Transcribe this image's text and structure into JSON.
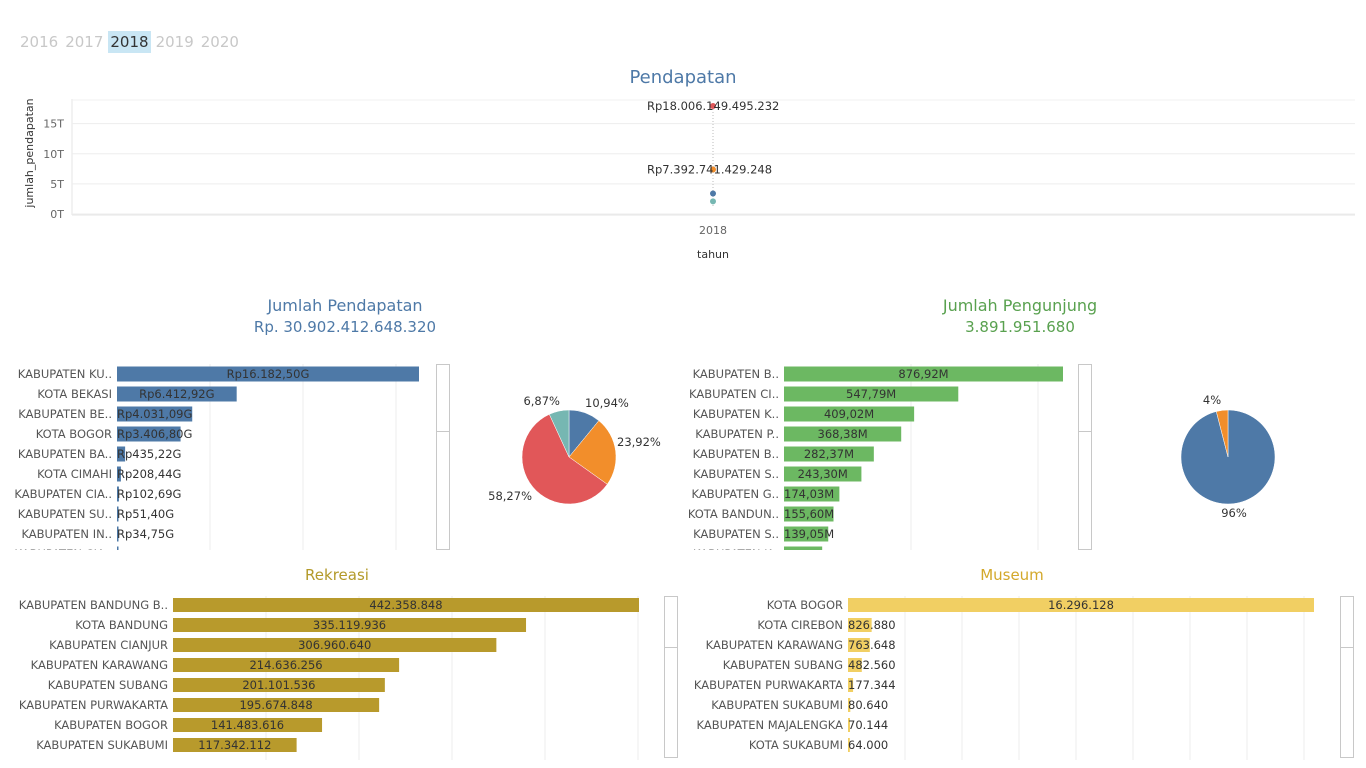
{
  "filter": {
    "years": [
      "2016",
      "2017",
      "2018",
      "2019",
      "2020"
    ],
    "selected": "2018"
  },
  "colors": {
    "blue": "#4e79a7",
    "orange": "#f28e2b",
    "red": "#e15759",
    "teal": "#76b7b2",
    "green": "#6cb862",
    "gold": "#b89a2c",
    "yellow": "#f1cf63"
  },
  "pendapatan": {
    "title": "Pendapatan",
    "ylabel": "jumlah_pendapatan",
    "xlabel": "tahun",
    "x_tick": "2018",
    "y_ticks": [
      "0T",
      "5T",
      "10T",
      "15T"
    ],
    "labels": [
      "Rp18.006.149.495.232",
      "Rp7.392.741.429.248"
    ]
  },
  "jumlah_pendapatan": {
    "title": "Jumlah Pendapatan",
    "value": "Rp. 30.902.412.648.320"
  },
  "jumlah_pengunjung": {
    "title": "Jumlah Pengunjung",
    "value": "3.891.951.680"
  },
  "chart_data": [
    {
      "id": "pendapatan_scatter",
      "type": "scatter",
      "title": "Pendapatan",
      "xlabel": "tahun",
      "ylabel": "jumlah_pendapatan",
      "x": [
        "2018"
      ],
      "points": [
        {
          "x": "2018",
          "y": 18006149495232,
          "label": "Rp18.006.149.495.232",
          "color": "#e15759"
        },
        {
          "x": "2018",
          "y": 7392741429248,
          "label": "Rp7.392.741.429.248",
          "color": "#f28e2b"
        },
        {
          "x": "2018",
          "y": 3400000000000,
          "color": "#4e79a7"
        },
        {
          "x": "2018",
          "y": 2100000000000,
          "color": "#76b7b2"
        }
      ],
      "ylim": [
        0,
        18000000000000
      ],
      "y_ticks": [
        "0T",
        "5T",
        "10T",
        "15T"
      ]
    },
    {
      "id": "pendapatan_bar",
      "type": "bar",
      "orientation": "horizontal",
      "categories": [
        "KABUPATEN KU..",
        "KOTA BEKASI",
        "KABUPATEN BE..",
        "KOTA BOGOR",
        "KABUPATEN BA..",
        "KOTA CIMAHI",
        "KABUPATEN CIA..",
        "KABUPATEN SU..",
        "KABUPATEN IN..",
        "KABUPATEN CIA.."
      ],
      "values": [
        16182.5,
        6412.92,
        4031.09,
        3406.8,
        435.22,
        208.44,
        102.69,
        51.4,
        34.75,
        20.0
      ],
      "value_labels": [
        "Rp16.182,50G",
        "Rp6.412,92G",
        "Rp4.031,09G",
        "Rp3.406,80G",
        "Rp435,22G",
        "Rp208,44G",
        "Rp102,69G",
        "Rp51,40G",
        "Rp34,75G",
        ""
      ],
      "xlim": [
        0,
        17000
      ],
      "color": "#4e79a7"
    },
    {
      "id": "pendapatan_pie",
      "type": "pie",
      "slices": [
        {
          "label": "10,94%",
          "value": 10.94,
          "color": "#4e79a7"
        },
        {
          "label": "23,92%",
          "value": 23.92,
          "color": "#f28e2b"
        },
        {
          "label": "58,27%",
          "value": 58.27,
          "color": "#e15759"
        },
        {
          "label": "6,87%",
          "value": 6.87,
          "color": "#76b7b2"
        }
      ]
    },
    {
      "id": "pengunjung_bar",
      "type": "bar",
      "orientation": "horizontal",
      "categories": [
        "KABUPATEN B..",
        "KABUPATEN CI..",
        "KABUPATEN K..",
        "KABUPATEN P..",
        "KABUPATEN B..",
        "KABUPATEN S..",
        "KABUPATEN G..",
        "KOTA BANDUN..",
        "KABUPATEN S..",
        "KABUPATEN K.."
      ],
      "values": [
        876.92,
        547.79,
        409.02,
        368.38,
        282.37,
        243.3,
        174.03,
        155.6,
        139.05,
        120.0
      ],
      "value_labels": [
        "876,92M",
        "547,79M",
        "409,02M",
        "368,38M",
        "282,37M",
        "243,30M",
        "174,03M",
        "155,60M",
        "139,05M",
        ""
      ],
      "xlim": [
        0,
        880
      ],
      "color": "#6cb862"
    },
    {
      "id": "pengunjung_pie",
      "type": "pie",
      "slices": [
        {
          "label": "96%",
          "value": 96,
          "color": "#4e79a7"
        },
        {
          "label": "4%",
          "value": 4,
          "color": "#f28e2b"
        }
      ]
    },
    {
      "id": "rekreasi_bar",
      "type": "bar",
      "orientation": "horizontal",
      "title": "Rekreasi",
      "categories": [
        "KABUPATEN BANDUNG B..",
        "KOTA BANDUNG",
        "KABUPATEN CIANJUR",
        "KABUPATEN KARAWANG",
        "KABUPATEN SUBANG",
        "KABUPATEN PURWAKARTA",
        "KABUPATEN BOGOR",
        "KABUPATEN SUKABUMI"
      ],
      "values": [
        442358848,
        335119936,
        306960640,
        214636256,
        201101536,
        195674848,
        141483616,
        117342112
      ],
      "value_labels": [
        "442.358.848",
        "335.119.936",
        "306.960.640",
        "214.636.256",
        "201.101.536",
        "195.674.848",
        "141.483.616",
        "117.342.112"
      ],
      "xlim": [
        0,
        442358848
      ],
      "color": "#b89a2c"
    },
    {
      "id": "museum_bar",
      "type": "bar",
      "orientation": "horizontal",
      "title": "Museum",
      "categories": [
        "KOTA BOGOR",
        "KOTA CIREBON",
        "KABUPATEN KARAWANG",
        "KABUPATEN SUBANG",
        "KABUPATEN PURWAKARTA",
        "KABUPATEN SUKABUMI",
        "KABUPATEN MAJALENGKA",
        "KOTA SUKABUMI"
      ],
      "values": [
        16296128,
        826880,
        763648,
        482560,
        177344,
        80640,
        70144,
        64000
      ],
      "value_labels": [
        "16.296.128",
        "826.880",
        "763.648",
        "482.560",
        "177.344",
        "80.640",
        "70.144",
        "64.000"
      ],
      "xlim": [
        0,
        16296128
      ],
      "color": "#f1cf63"
    }
  ],
  "rekreasi": {
    "title": "Rekreasi"
  },
  "museum": {
    "title": "Museum"
  }
}
